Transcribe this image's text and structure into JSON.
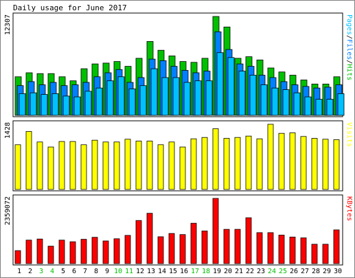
{
  "chart_data": {
    "type": "bar",
    "title": "Daily usage for June 2017",
    "categories": [
      "1",
      "2",
      "3",
      "4",
      "5",
      "6",
      "7",
      "8",
      "9",
      "10",
      "11",
      "12",
      "13",
      "14",
      "15",
      "16",
      "17",
      "18",
      "19",
      "20",
      "21",
      "22",
      "23",
      "24",
      "25",
      "26",
      "27",
      "28",
      "29",
      "30"
    ],
    "weekend_days": [
      "3",
      "4",
      "10",
      "11",
      "17",
      "18",
      "24",
      "25"
    ],
    "panels": [
      {
        "id": "hits",
        "max_label": "12307",
        "ymax": 12307,
        "legend": [
          {
            "text": "Pages",
            "color": "#00c0ff"
          },
          {
            "text": "/",
            "color": "#000000"
          },
          {
            "text": "Files",
            "color": "#0080ff"
          },
          {
            "text": "/",
            "color": "#000000"
          },
          {
            "text": "Hits",
            "color": "#00c000"
          }
        ],
        "series": [
          {
            "name": "Hits",
            "color": "#00c000",
            "values": [
              4800,
              5300,
              5200,
              5200,
              4800,
              4300,
              5800,
              6400,
              6500,
              6700,
              6100,
              7100,
              9200,
              8100,
              7400,
              6700,
              6600,
              7100,
              12307,
              11000,
              7100,
              7300,
              6900,
              5900,
              5400,
              5000,
              4400,
              3900,
              3900,
              4800
            ]
          },
          {
            "name": "Files",
            "color": "#0080ff",
            "values": [
              3700,
              4200,
              3800,
              4100,
              3700,
              3800,
              4100,
              4800,
              5300,
              5700,
              4100,
              4700,
              7000,
              6800,
              6100,
              5600,
              5300,
              5500,
              10400,
              8200,
              6400,
              6100,
              5000,
              4700,
              4200,
              3800,
              3600,
              3400,
              3500,
              3800
            ]
          },
          {
            "name": "Pages",
            "color": "#00c0ff",
            "values": [
              2700,
              2800,
              2600,
              2700,
              2400,
              2300,
              3000,
              3400,
              4300,
              4800,
              3300,
              3700,
              5800,
              4700,
              4700,
              4100,
              4300,
              4300,
              7800,
              7200,
              5500,
              5000,
              3800,
              3400,
              3200,
              2800,
              2300,
              2000,
              2000,
              2700
            ]
          }
        ]
      },
      {
        "id": "visits",
        "max_label": "1428",
        "ymax": 1428,
        "legend": [
          {
            "text": "Visits",
            "color": "#ffff00"
          }
        ],
        "series": [
          {
            "name": "Visits",
            "color": "#ffff00",
            "values": [
              980,
              1270,
              1040,
              930,
              1050,
              1050,
              980,
              1080,
              1040,
              1040,
              1100,
              1060,
              1060,
              980,
              1040,
              930,
              1110,
              1140,
              1330,
              1120,
              1140,
              1170,
              1110,
              1428,
              1230,
              1240,
              1160,
              1120,
              1100,
              1090
            ]
          }
        ]
      },
      {
        "id": "kbytes",
        "max_label": "2359072",
        "ymax": 2359072,
        "legend": [
          {
            "text": "KBytes",
            "color": "#ff0000"
          }
        ],
        "series": [
          {
            "name": "KBytes",
            "color": "#ff0000",
            "values": [
              470000,
              850000,
              890000,
              630000,
              850000,
              790000,
              880000,
              950000,
              820000,
              900000,
              1020000,
              1560000,
              1820000,
              970000,
              1090000,
              1050000,
              1460000,
              1180000,
              2359072,
              1240000,
              1240000,
              1660000,
              1120000,
              1120000,
              1030000,
              960000,
              930000,
              700000,
              700000,
              1220000
            ]
          }
        ]
      }
    ],
    "colors": {
      "background": "#ffffff",
      "frame": "#000000",
      "panel_bg": "#ffffff",
      "weekday_label": "#000000",
      "weekend_label": "#00c000"
    }
  }
}
